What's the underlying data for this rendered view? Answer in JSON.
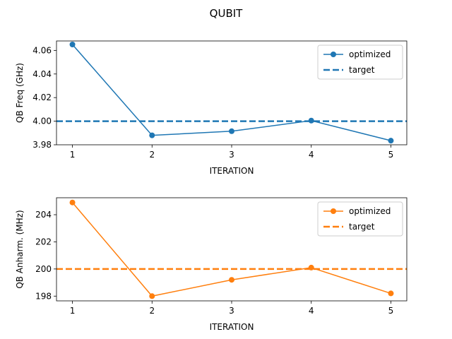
{
  "figure": {
    "title": "QUBIT"
  },
  "chart_data": [
    {
      "type": "line",
      "xlabel": "ITERATION",
      "ylabel": "QB Freq (GHz)",
      "x": [
        1,
        2,
        3,
        4,
        5
      ],
      "xlim": [
        0.8,
        5.2
      ],
      "ylim": [
        3.98,
        4.068
      ],
      "xticks": [
        "1",
        "2",
        "3",
        "4",
        "5"
      ],
      "yticks": [
        "3.98",
        "4.00",
        "4.02",
        "4.04",
        "4.06"
      ],
      "grid": false,
      "legend_position": "upper right",
      "color": "#1f77b4",
      "series": [
        {
          "name": "optimized",
          "style": "solid-marker",
          "values": [
            4.065,
            3.988,
            3.9915,
            4.0005,
            3.9835
          ]
        },
        {
          "name": "target",
          "style": "dashed",
          "values": [
            4.0,
            4.0,
            4.0,
            4.0,
            4.0
          ]
        }
      ]
    },
    {
      "type": "line",
      "xlabel": "ITERATION",
      "ylabel": "QB Anharm. (MHz)",
      "x": [
        1,
        2,
        3,
        4,
        5
      ],
      "xlim": [
        0.8,
        5.2
      ],
      "ylim": [
        197.65,
        205.25
      ],
      "xticks": [
        "1",
        "2",
        "3",
        "4",
        "5"
      ],
      "yticks": [
        "198",
        "200",
        "202",
        "204"
      ],
      "grid": false,
      "legend_position": "upper right",
      "color": "#ff7f0e",
      "series": [
        {
          "name": "optimized",
          "style": "solid-marker",
          "values": [
            204.9,
            198.0,
            199.2,
            200.1,
            198.2
          ]
        },
        {
          "name": "target",
          "style": "dashed",
          "values": [
            200.0,
            200.0,
            200.0,
            200.0,
            200.0
          ]
        }
      ]
    }
  ]
}
